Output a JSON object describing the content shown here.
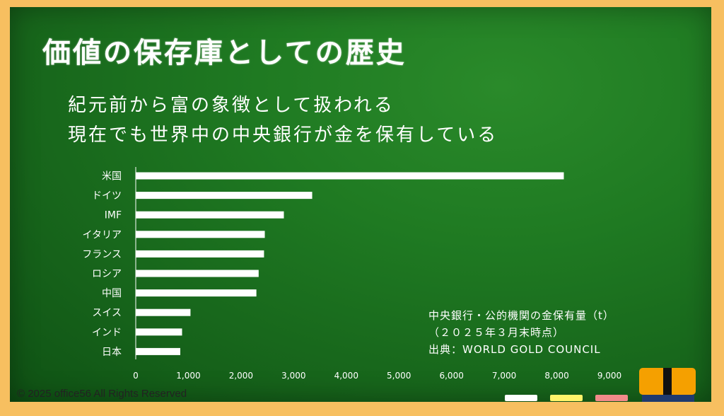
{
  "title": "価値の保存庫としての歴史",
  "subtitles": [
    "紀元前から富の象徴として扱われる",
    "現在でも世界中の中央銀行が金を保有している"
  ],
  "chart_data": {
    "type": "bar",
    "orientation": "horizontal",
    "categories": [
      "米国",
      "ドイツ",
      "IMF",
      "イタリア",
      "フランス",
      "ロシア",
      "中国",
      "スイス",
      "インド",
      "日本"
    ],
    "values": [
      8133,
      3352,
      2814,
      2452,
      2437,
      2335,
      2292,
      1040,
      880,
      846
    ],
    "xlim": [
      0,
      9000
    ],
    "xticks": [
      "0",
      "1,000",
      "2,000",
      "3,000",
      "4,000",
      "5,000",
      "6,000",
      "7,000",
      "8,000",
      "9,000"
    ],
    "bar_color": "#ffffff",
    "grid": false
  },
  "caption": {
    "line1": "中央銀行・公的機関の金保有量（t）",
    "line2": "（２０２５年３月末時点）",
    "line3": "出典：WORLD GOLD COUNCIL"
  },
  "copyright": "© 2025 office56 All Rights Reserved",
  "colors": {
    "board": "#1f7a22",
    "frame": "#f7bf60",
    "chalk": [
      "#ffffff",
      "#fff36a",
      "#f28a8a"
    ],
    "eraser": "#f5a000"
  }
}
